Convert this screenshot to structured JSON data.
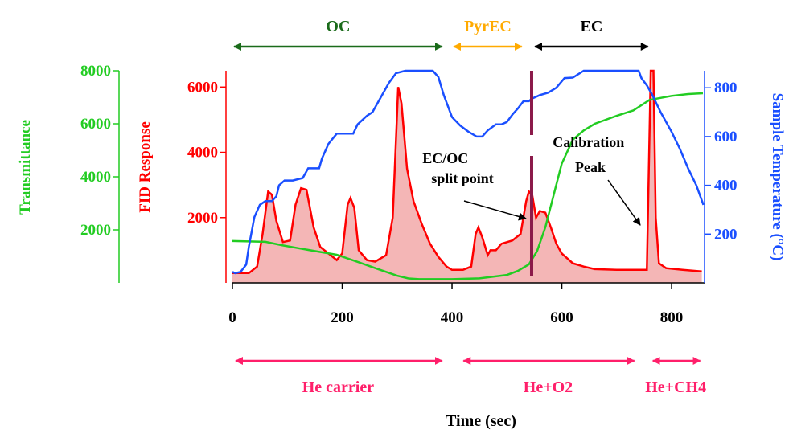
{
  "colors": {
    "fid": "#ff0000",
    "fid_fill": "#f4b6b6",
    "transmittance": "#22cc22",
    "temperature": "#1a4fff",
    "oc": "#1a6b1a",
    "pyrec": "#ffaa00",
    "ec": "#000000",
    "gas": "#ff1f6a",
    "split_line": "#8b1a4a"
  },
  "chart_data": {
    "type": "line",
    "xlabel": "Time (sec)",
    "x_ticks": [
      "0",
      "200",
      "400",
      "600",
      "800"
    ],
    "xlim": [
      0,
      860
    ],
    "axes": {
      "fid": {
        "label": "FID Response",
        "ylim": [
          0,
          6500
        ],
        "ticks": [
          "2000",
          "4000",
          "6000"
        ]
      },
      "transmittance": {
        "label": "Transmittance",
        "ylim": [
          0,
          8000
        ],
        "ticks": [
          "2000",
          "4000",
          "6000",
          "8000"
        ]
      },
      "temperature": {
        "label": "Sample Temperature (°C)",
        "ylim": [
          0,
          870
        ],
        "ticks": [
          "200",
          "400",
          "600",
          "800"
        ]
      }
    },
    "series": [
      {
        "key": "fid",
        "filled": true,
        "points": [
          [
            0,
            300
          ],
          [
            30,
            300
          ],
          [
            45,
            500
          ],
          [
            55,
            1500
          ],
          [
            65,
            2800
          ],
          [
            72,
            2700
          ],
          [
            80,
            1900
          ],
          [
            92,
            1250
          ],
          [
            105,
            1300
          ],
          [
            115,
            2400
          ],
          [
            125,
            2900
          ],
          [
            135,
            2850
          ],
          [
            148,
            1700
          ],
          [
            160,
            1100
          ],
          [
            175,
            900
          ],
          [
            190,
            700
          ],
          [
            200,
            900
          ],
          [
            210,
            2400
          ],
          [
            215,
            2600
          ],
          [
            222,
            2300
          ],
          [
            230,
            1000
          ],
          [
            245,
            700
          ],
          [
            260,
            650
          ],
          [
            270,
            750
          ],
          [
            280,
            850
          ],
          [
            292,
            2000
          ],
          [
            302,
            6000
          ],
          [
            308,
            5500
          ],
          [
            318,
            3500
          ],
          [
            330,
            2500
          ],
          [
            345,
            1800
          ],
          [
            360,
            1200
          ],
          [
            375,
            800
          ],
          [
            390,
            500
          ],
          [
            400,
            400
          ],
          [
            420,
            400
          ],
          [
            435,
            500
          ],
          [
            443,
            1500
          ],
          [
            448,
            1700
          ],
          [
            455,
            1400
          ],
          [
            465,
            850
          ],
          [
            470,
            1000
          ],
          [
            480,
            1000
          ],
          [
            490,
            1200
          ],
          [
            510,
            1300
          ],
          [
            525,
            1500
          ],
          [
            535,
            2500
          ],
          [
            540,
            2800
          ],
          [
            546,
            2700
          ],
          [
            553,
            2000
          ],
          [
            560,
            2200
          ],
          [
            570,
            2150
          ],
          [
            580,
            1700
          ],
          [
            590,
            1200
          ],
          [
            600,
            900
          ],
          [
            620,
            600
          ],
          [
            640,
            500
          ],
          [
            660,
            420
          ],
          [
            700,
            400
          ],
          [
            740,
            400
          ],
          [
            750,
            400
          ],
          [
            755,
            400
          ],
          [
            762,
            6500
          ],
          [
            767,
            6500
          ],
          [
            771,
            2000
          ],
          [
            777,
            600
          ],
          [
            790,
            450
          ],
          [
            820,
            400
          ],
          [
            855,
            350
          ]
        ]
      },
      {
        "key": "transmittance",
        "points": [
          [
            0,
            1580
          ],
          [
            60,
            1550
          ],
          [
            90,
            1420
          ],
          [
            120,
            1310
          ],
          [
            150,
            1200
          ],
          [
            190,
            1060
          ],
          [
            230,
            780
          ],
          [
            265,
            520
          ],
          [
            300,
            270
          ],
          [
            320,
            170
          ],
          [
            340,
            140
          ],
          [
            400,
            140
          ],
          [
            450,
            170
          ],
          [
            500,
            300
          ],
          [
            520,
            450
          ],
          [
            540,
            700
          ],
          [
            555,
            1200
          ],
          [
            570,
            2100
          ],
          [
            585,
            3300
          ],
          [
            600,
            4500
          ],
          [
            620,
            5400
          ],
          [
            640,
            5750
          ],
          [
            660,
            6000
          ],
          [
            700,
            6300
          ],
          [
            730,
            6500
          ],
          [
            760,
            6900
          ],
          [
            800,
            7050
          ],
          [
            830,
            7120
          ],
          [
            857,
            7150
          ]
        ]
      },
      {
        "key": "temperature",
        "points": [
          [
            0,
            45
          ],
          [
            5,
            40
          ],
          [
            15,
            45
          ],
          [
            25,
            75
          ],
          [
            30,
            150
          ],
          [
            35,
            210
          ],
          [
            40,
            270
          ],
          [
            50,
            320
          ],
          [
            60,
            335
          ],
          [
            72,
            335
          ],
          [
            80,
            355
          ],
          [
            85,
            400
          ],
          [
            95,
            420
          ],
          [
            110,
            420
          ],
          [
            128,
            430
          ],
          [
            138,
            470
          ],
          [
            158,
            470
          ],
          [
            163,
            510
          ],
          [
            175,
            570
          ],
          [
            190,
            612
          ],
          [
            220,
            612
          ],
          [
            228,
            650
          ],
          [
            245,
            685
          ],
          [
            255,
            700
          ],
          [
            270,
            760
          ],
          [
            285,
            820
          ],
          [
            298,
            860
          ],
          [
            315,
            870
          ],
          [
            365,
            870
          ],
          [
            375,
            845
          ],
          [
            385,
            770
          ],
          [
            400,
            680
          ],
          [
            415,
            645
          ],
          [
            430,
            620
          ],
          [
            445,
            600
          ],
          [
            455,
            600
          ],
          [
            465,
            625
          ],
          [
            480,
            650
          ],
          [
            490,
            650
          ],
          [
            500,
            660
          ],
          [
            510,
            690
          ],
          [
            520,
            715
          ],
          [
            530,
            745
          ],
          [
            540,
            745
          ],
          [
            545,
            755
          ],
          [
            560,
            770
          ],
          [
            575,
            780
          ],
          [
            590,
            800
          ],
          [
            605,
            840
          ],
          [
            620,
            842
          ],
          [
            640,
            870
          ],
          [
            740,
            870
          ],
          [
            745,
            840
          ],
          [
            755,
            810
          ],
          [
            765,
            770
          ],
          [
            780,
            700
          ],
          [
            800,
            620
          ],
          [
            815,
            550
          ],
          [
            830,
            470
          ],
          [
            845,
            400
          ],
          [
            858,
            320
          ]
        ]
      }
    ],
    "annotations": {
      "split_label_line1": "EC/OC",
      "split_label_line2": "split point",
      "calibration_line1": "Calibration",
      "calibration_line2": "Peak",
      "split_time": 545
    },
    "phases": [
      {
        "label": "OC",
        "color_key": "oc",
        "x_start": 0,
        "x_end": 385
      },
      {
        "label": "PyrEC",
        "color_key": "pyrec",
        "x_start": 400,
        "x_end": 530
      },
      {
        "label": "EC",
        "color_key": "ec",
        "x_start": 548,
        "x_end": 760
      }
    ],
    "carrier_gases": [
      {
        "label": "He carrier",
        "x_start": 0,
        "x_end": 385
      },
      {
        "label": "He+O2",
        "x_start": 415,
        "x_end": 735
      },
      {
        "label": "He+CH4",
        "x_start": 760,
        "x_end": 855
      }
    ]
  }
}
